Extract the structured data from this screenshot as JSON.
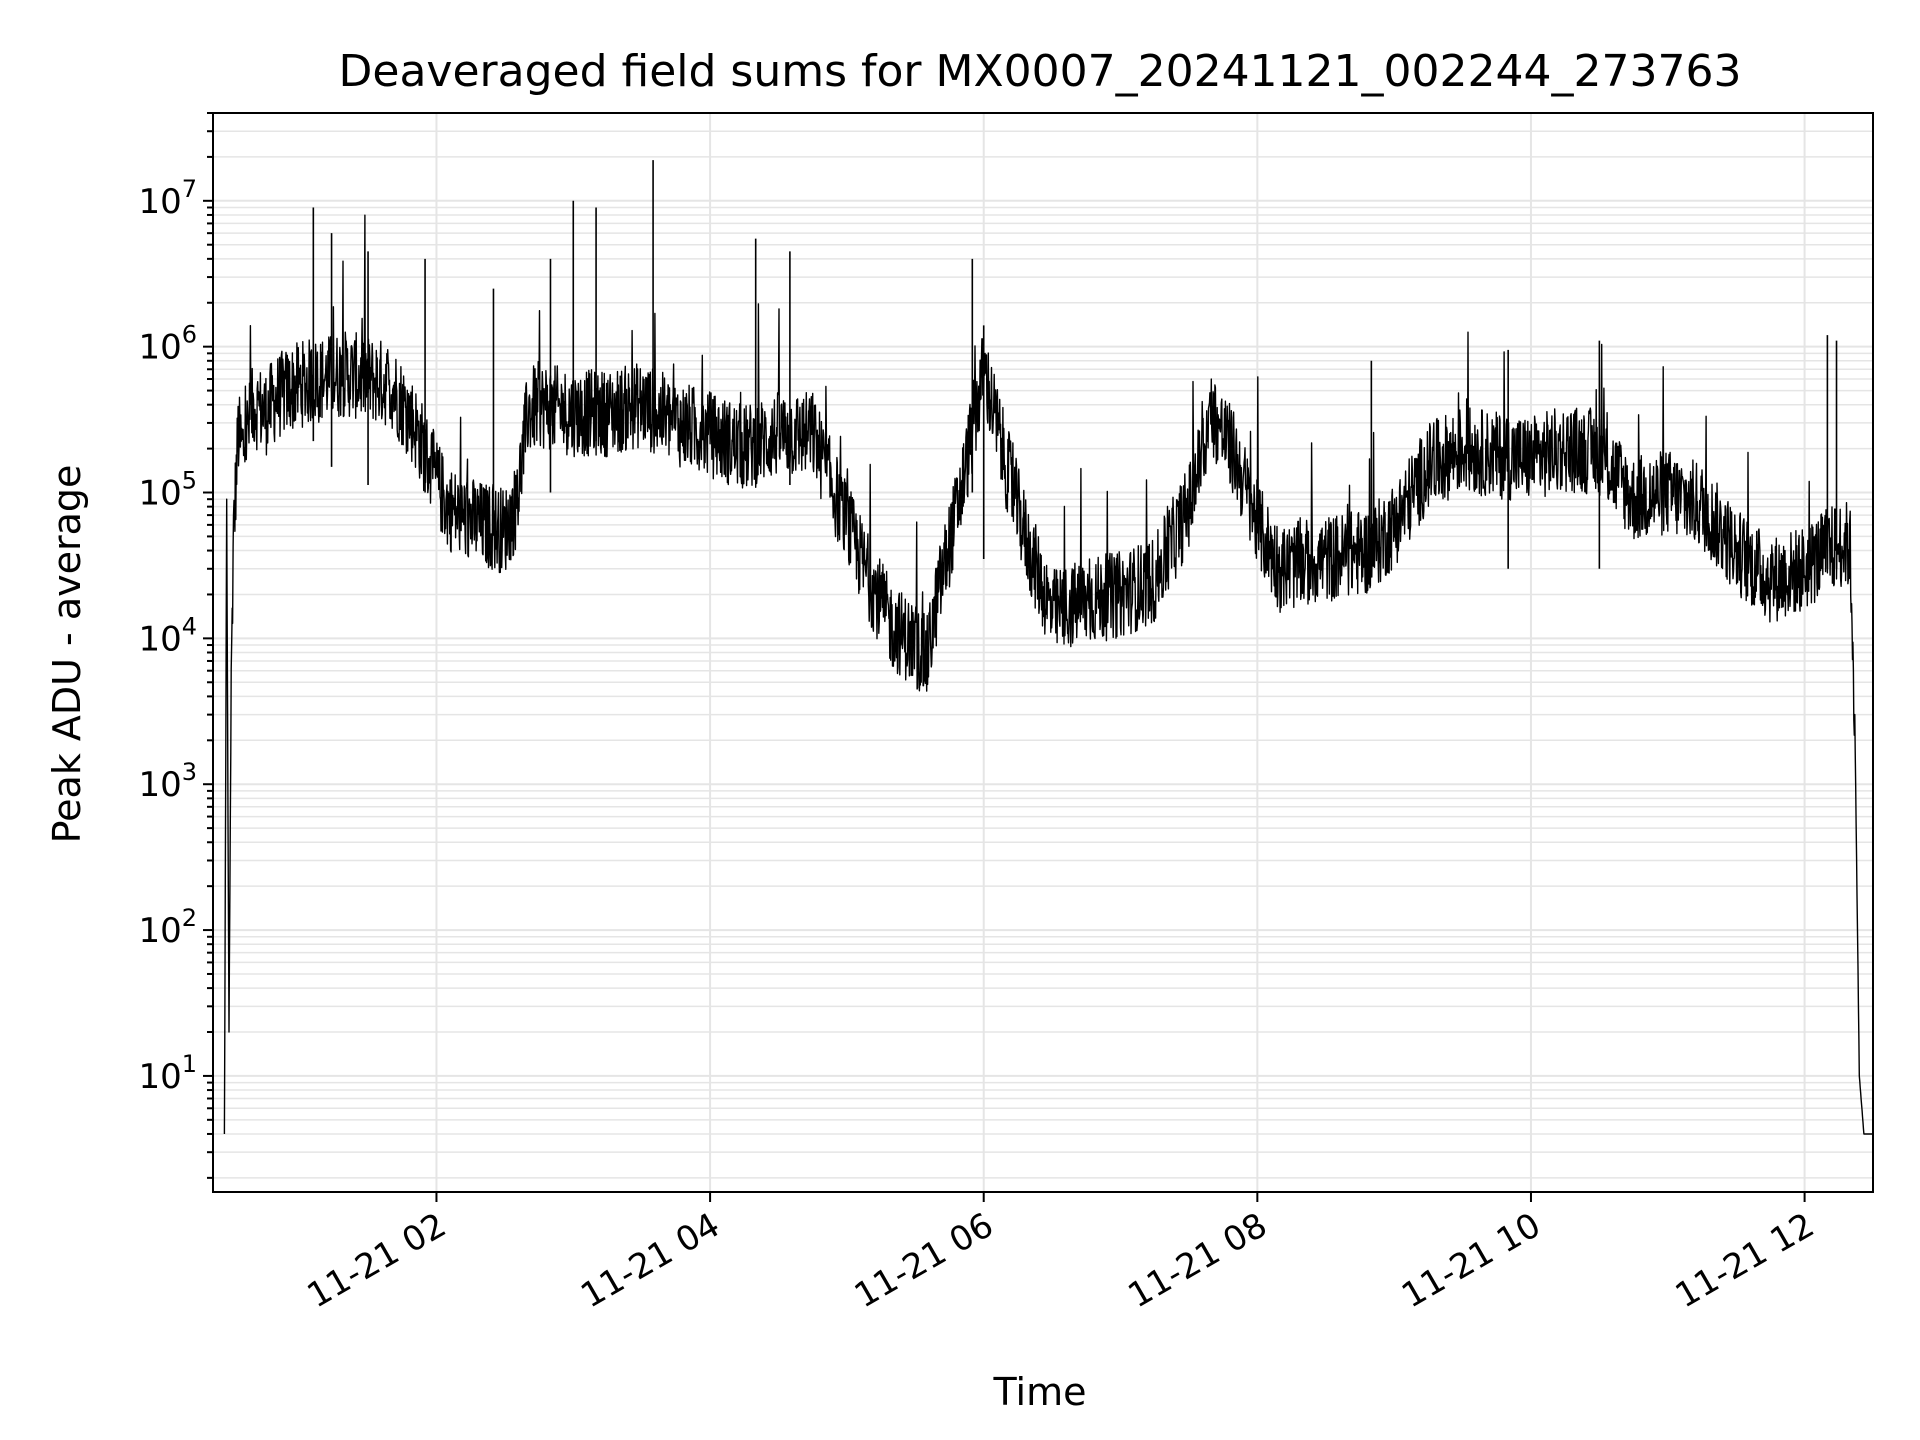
{
  "chart_data": {
    "type": "line",
    "title": "Deaveraged field sums for MX0007_20241121_002244_273763",
    "xlabel": "Time",
    "ylabel": "Peak ADU - average",
    "xscale": "time",
    "yscale": "log",
    "xlim": [
      "2024-11-21 00:22",
      "2024-11-21 12:30"
    ],
    "ylim": [
      1.6,
      40000000
    ],
    "grid": true,
    "line_color": "#000000",
    "grid_color": "#e5e5e5",
    "x_ticks": [
      {
        "t": "2024-11-21 02:00",
        "label": "11-21 02"
      },
      {
        "t": "2024-11-21 04:00",
        "label": "11-21 04"
      },
      {
        "t": "2024-11-21 06:00",
        "label": "11-21 06"
      },
      {
        "t": "2024-11-21 08:00",
        "label": "11-21 08"
      },
      {
        "t": "2024-11-21 10:00",
        "label": "11-21 10"
      },
      {
        "t": "2024-11-21 12:00",
        "label": "11-21 12"
      }
    ],
    "y_ticks": [
      {
        "value": 10,
        "base": "10",
        "exp": "1"
      },
      {
        "value": 100,
        "base": "10",
        "exp": "2"
      },
      {
        "value": 1000,
        "base": "10",
        "exp": "3"
      },
      {
        "value": 10000,
        "base": "10",
        "exp": "4"
      },
      {
        "value": 100000,
        "base": "10",
        "exp": "5"
      },
      {
        "value": 1000000,
        "base": "10",
        "exp": "6"
      },
      {
        "value": 10000000,
        "base": "10",
        "exp": "7"
      }
    ],
    "series": [
      {
        "x": [
          "2024-11-21 00:27",
          "2024-11-21 00:28",
          "2024-11-21 00:29",
          "2024-11-21 00:30",
          "2024-11-21 00:31",
          "2024-11-21 00:33",
          "2024-11-21 00:35",
          "2024-11-21 00:38",
          "2024-11-21 00:40",
          "2024-11-21 00:45",
          "2024-11-21 00:50",
          "2024-11-21 00:55",
          "2024-11-21 01:00",
          "2024-11-21 01:10",
          "2024-11-21 01:20",
          "2024-11-21 01:30",
          "2024-11-21 01:40",
          "2024-11-21 01:50",
          "2024-11-21 02:00",
          "2024-11-21 02:05",
          "2024-11-21 02:10",
          "2024-11-21 02:20",
          "2024-11-21 02:30",
          "2024-11-21 02:35",
          "2024-11-21 02:40",
          "2024-11-21 02:45",
          "2024-11-21 03:00",
          "2024-11-21 03:15",
          "2024-11-21 03:30",
          "2024-11-21 03:45",
          "2024-11-21 04:00",
          "2024-11-21 04:15",
          "2024-11-21 04:30",
          "2024-11-21 04:45",
          "2024-11-21 05:00",
          "2024-11-21 05:10",
          "2024-11-21 05:20",
          "2024-11-21 05:30",
          "2024-11-21 05:35",
          "2024-11-21 05:40",
          "2024-11-21 05:50",
          "2024-11-21 06:00",
          "2024-11-21 06:10",
          "2024-11-21 06:20",
          "2024-11-21 06:30",
          "2024-11-21 06:45",
          "2024-11-21 07:00",
          "2024-11-21 07:15",
          "2024-11-21 07:30",
          "2024-11-21 07:40",
          "2024-11-21 07:50",
          "2024-11-21 08:00",
          "2024-11-21 08:10",
          "2024-11-21 08:30",
          "2024-11-21 08:50",
          "2024-11-21 09:00",
          "2024-11-21 09:15",
          "2024-11-21 09:30",
          "2024-11-21 09:45",
          "2024-11-21 10:00",
          "2024-11-21 10:15",
          "2024-11-21 10:30",
          "2024-11-21 10:45",
          "2024-11-21 11:00",
          "2024-11-21 11:15",
          "2024-11-21 11:30",
          "2024-11-21 11:45",
          "2024-11-21 12:00",
          "2024-11-21 12:10",
          "2024-11-21 12:18",
          "2024-11-21 12:20",
          "2024-11-21 12:22",
          "2024-11-21 12:24",
          "2024-11-21 12:26",
          "2024-11-21 12:28",
          "2024-11-21 12:30"
        ],
        "y": [
          4,
          90000,
          20,
          5000,
          50000,
          250000,
          200000,
          300000,
          400000,
          350000,
          450000,
          500000,
          550000,
          600000,
          650000,
          600000,
          550000,
          300000,
          120000,
          80000,
          70000,
          60000,
          55000,
          80000,
          350000,
          400000,
          350000,
          350000,
          400000,
          300000,
          250000,
          200000,
          250000,
          250000,
          60000,
          25000,
          12000,
          9000,
          7000,
          20000,
          100000,
          700000,
          150000,
          40000,
          15000,
          18000,
          20000,
          25000,
          80000,
          350000,
          180000,
          60000,
          30000,
          35000,
          40000,
          60000,
          150000,
          200000,
          180000,
          170000,
          200000,
          190000,
          90000,
          100000,
          80000,
          40000,
          25000,
          30000,
          40000,
          45000,
          40000,
          3000,
          10,
          4,
          4,
          4
        ]
      }
    ],
    "spikes": [
      {
        "t": "2024-11-21 01:06",
        "peak": 9000000
      },
      {
        "t": "2024-11-21 01:14",
        "peak": 6000000
      },
      {
        "t": "2024-11-21 01:30",
        "peak": 4500000
      },
      {
        "t": "2024-11-21 01:55",
        "peak": 4000000
      },
      {
        "t": "2024-11-21 02:25",
        "peak": 2500000
      },
      {
        "t": "2024-11-21 02:50",
        "peak": 4000000
      },
      {
        "t": "2024-11-21 03:00",
        "peak": 10000000
      },
      {
        "t": "2024-11-21 03:10",
        "peak": 9000000
      },
      {
        "t": "2024-11-21 03:35",
        "peak": 19000000
      },
      {
        "t": "2024-11-21 04:20",
        "peak": 5500000
      },
      {
        "t": "2024-11-21 04:35",
        "peak": 4500000
      },
      {
        "t": "2024-11-21 05:55",
        "peak": 4000000
      },
      {
        "t": "2024-11-21 06:00",
        "peak": 1400000
      },
      {
        "t": "2024-11-21 08:50",
        "peak": 800000
      },
      {
        "t": "2024-11-21 09:50",
        "peak": 950000
      },
      {
        "t": "2024-11-21 10:30",
        "peak": 1100000
      },
      {
        "t": "2024-11-21 12:10",
        "peak": 1200000
      },
      {
        "t": "2024-11-21 12:14",
        "peak": 1100000
      }
    ]
  }
}
